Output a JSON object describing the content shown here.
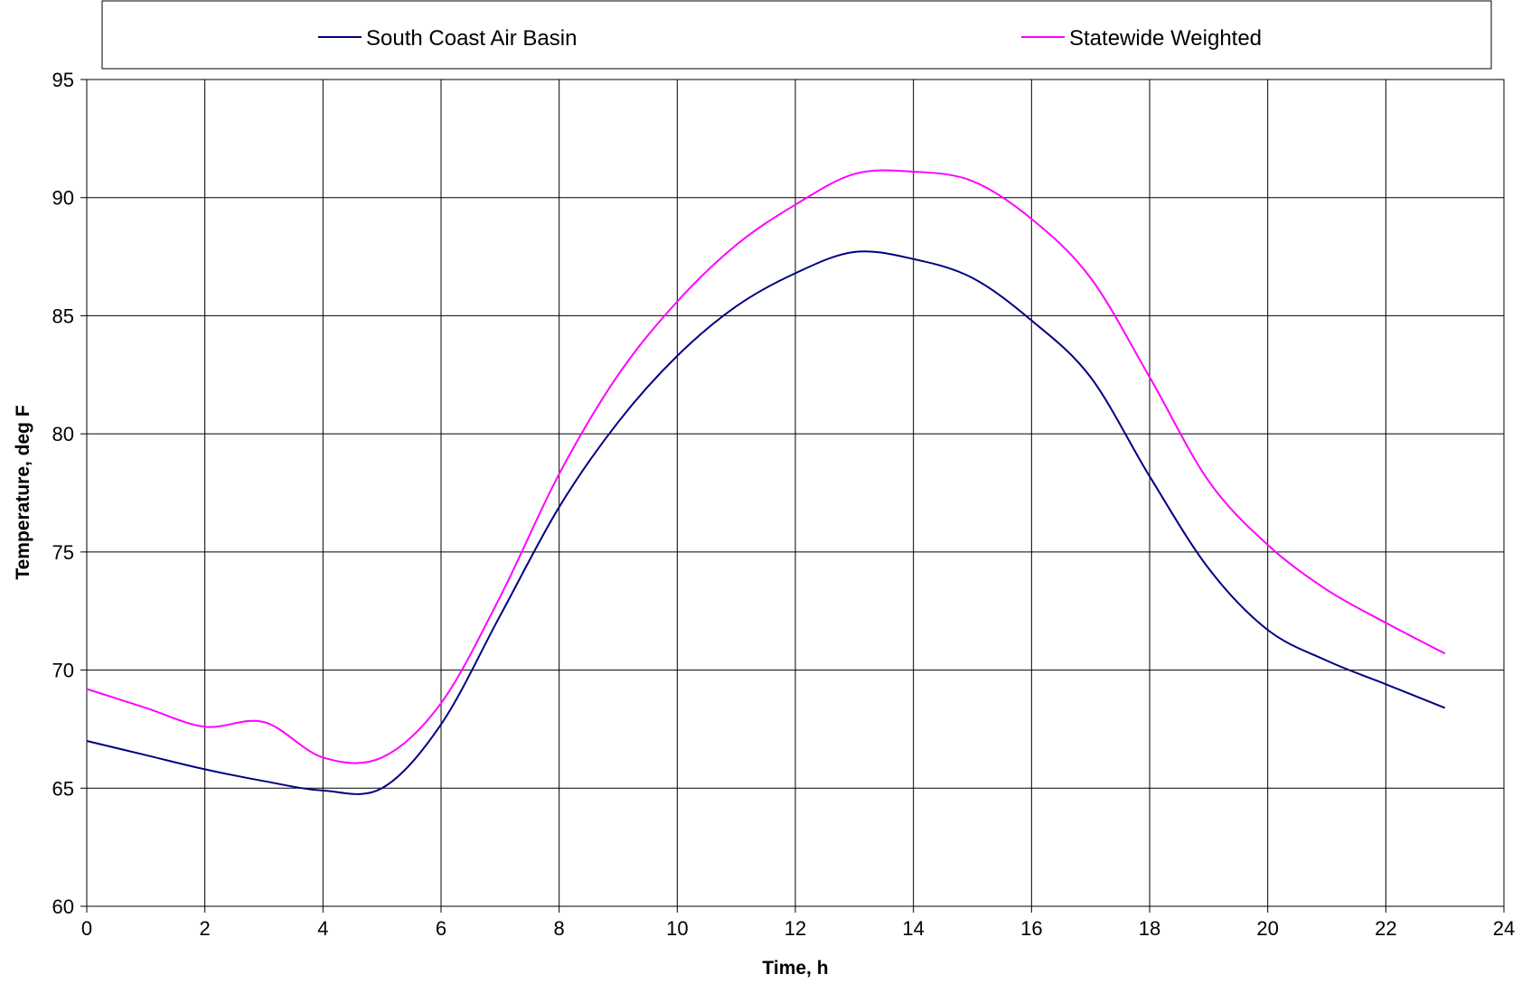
{
  "chart_data": {
    "type": "line",
    "title": "",
    "xlabel": "Time, h",
    "ylabel": "Temperature, deg F",
    "xlim": [
      0,
      24
    ],
    "ylim": [
      60,
      95
    ],
    "xticks": [
      "0",
      "2",
      "4",
      "6",
      "8",
      "10",
      "12",
      "14",
      "16",
      "18",
      "20",
      "22",
      "24"
    ],
    "yticks": [
      "60",
      "65",
      "70",
      "75",
      "80",
      "85",
      "90",
      "95"
    ],
    "grid": true,
    "legend_position": "top",
    "x": [
      0,
      1,
      2,
      3,
      4,
      5,
      6,
      7,
      8,
      9,
      10,
      11,
      12,
      13,
      14,
      15,
      16,
      17,
      18,
      19,
      20,
      21,
      22,
      23
    ],
    "series": [
      {
        "name": "South Coast Air Basin",
        "color": "#000080",
        "values": [
          67.0,
          66.4,
          65.8,
          65.3,
          64.9,
          65.0,
          67.7,
          72.3,
          76.9,
          80.5,
          83.3,
          85.4,
          86.8,
          87.7,
          87.4,
          86.6,
          84.8,
          82.4,
          78.2,
          74.3,
          71.7,
          70.4,
          69.4,
          68.4
        ]
      },
      {
        "name": "Statewide Weighted",
        "color": "#FF00FF",
        "values": [
          69.2,
          68.4,
          67.6,
          67.8,
          66.3,
          66.3,
          68.6,
          73.1,
          78.3,
          82.5,
          85.6,
          88.0,
          89.7,
          91.0,
          91.1,
          90.7,
          89.1,
          86.6,
          82.4,
          78.0,
          75.3,
          73.4,
          72.0,
          70.7
        ]
      }
    ]
  }
}
